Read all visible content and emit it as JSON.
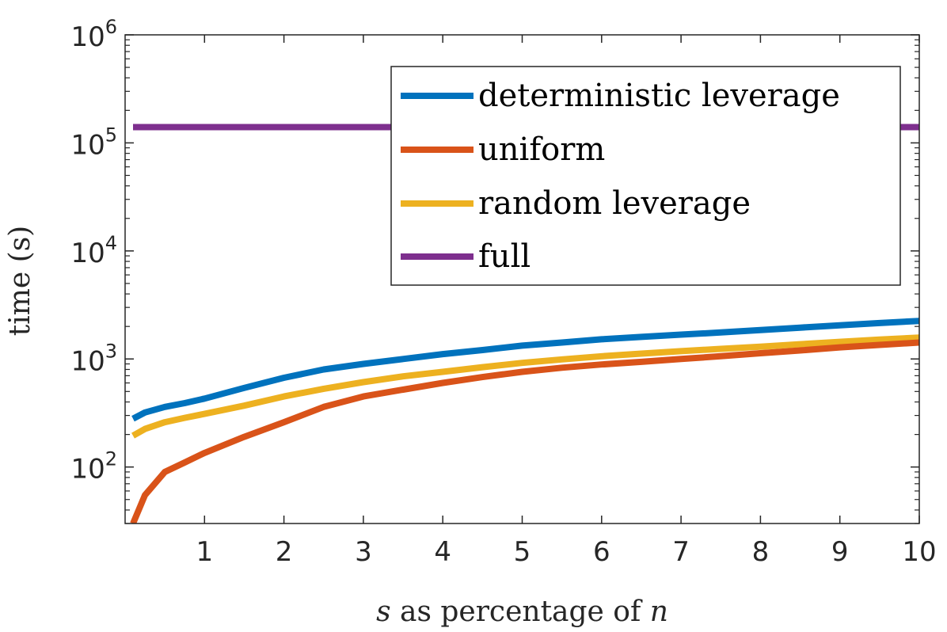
{
  "chart_data": {
    "type": "line",
    "title": "",
    "xlabel_parts": [
      {
        "text": "s",
        "italic": true
      },
      {
        "text": " as percentage of ",
        "italic": false
      },
      {
        "text": "n",
        "italic": true
      }
    ],
    "ylabel": "time (s)",
    "x_scale": "linear",
    "y_scale": "log",
    "xlim": [
      0,
      10
    ],
    "ylim": [
      30,
      1000000
    ],
    "x_ticks": [
      1,
      2,
      3,
      4,
      5,
      6,
      7,
      8,
      9,
      10
    ],
    "x_tick_labels": [
      "1",
      "2",
      "3",
      "4",
      "5",
      "6",
      "7",
      "8",
      "9",
      "10"
    ],
    "y_ticks": [
      {
        "value": 100,
        "base": "10",
        "exp": "2"
      },
      {
        "value": 1000,
        "base": "10",
        "exp": "3"
      },
      {
        "value": 10000,
        "base": "10",
        "exp": "4"
      },
      {
        "value": 100000,
        "base": "10",
        "exp": "5"
      },
      {
        "value": 1000000,
        "base": "10",
        "exp": "6"
      }
    ],
    "legend_position": "top-right",
    "series": [
      {
        "name": "deterministic leverage",
        "color": "#0072BD",
        "x": [
          0.1,
          0.25,
          0.5,
          0.75,
          1,
          1.5,
          2,
          2.5,
          3,
          3.5,
          4,
          4.5,
          5,
          5.5,
          6,
          6.5,
          7,
          7.5,
          8,
          8.5,
          9,
          9.5,
          10
        ],
        "y": [
          280,
          320,
          360,
          390,
          430,
          540,
          670,
          800,
          900,
          1000,
          1110,
          1210,
          1330,
          1420,
          1520,
          1600,
          1680,
          1760,
          1850,
          1950,
          2050,
          2150,
          2250
        ]
      },
      {
        "name": "uniform",
        "color": "#D95319",
        "x": [
          0.1,
          0.25,
          0.5,
          0.75,
          1,
          1.5,
          2,
          2.5,
          3,
          3.5,
          4,
          4.5,
          5,
          5.5,
          6,
          6.5,
          7,
          7.5,
          8,
          8.5,
          9,
          9.5,
          10
        ],
        "y": [
          30,
          55,
          90,
          110,
          135,
          190,
          260,
          360,
          450,
          520,
          600,
          680,
          760,
          830,
          890,
          940,
          1000,
          1060,
          1130,
          1200,
          1280,
          1350,
          1420
        ]
      },
      {
        "name": "random leverage",
        "color": "#EDB120",
        "x": [
          0.1,
          0.25,
          0.5,
          0.75,
          1,
          1.5,
          2,
          2.5,
          3,
          3.5,
          4,
          4.5,
          5,
          5.5,
          6,
          6.5,
          7,
          7.5,
          8,
          8.5,
          9,
          9.5,
          10
        ],
        "y": [
          195,
          225,
          260,
          285,
          310,
          370,
          450,
          530,
          610,
          690,
          760,
          840,
          920,
          990,
          1060,
          1120,
          1180,
          1240,
          1300,
          1370,
          1440,
          1510,
          1580
        ]
      },
      {
        "name": "full",
        "color": "#7E2F8E",
        "x": [
          0.1,
          10
        ],
        "y": [
          140000,
          140000
        ]
      }
    ]
  }
}
